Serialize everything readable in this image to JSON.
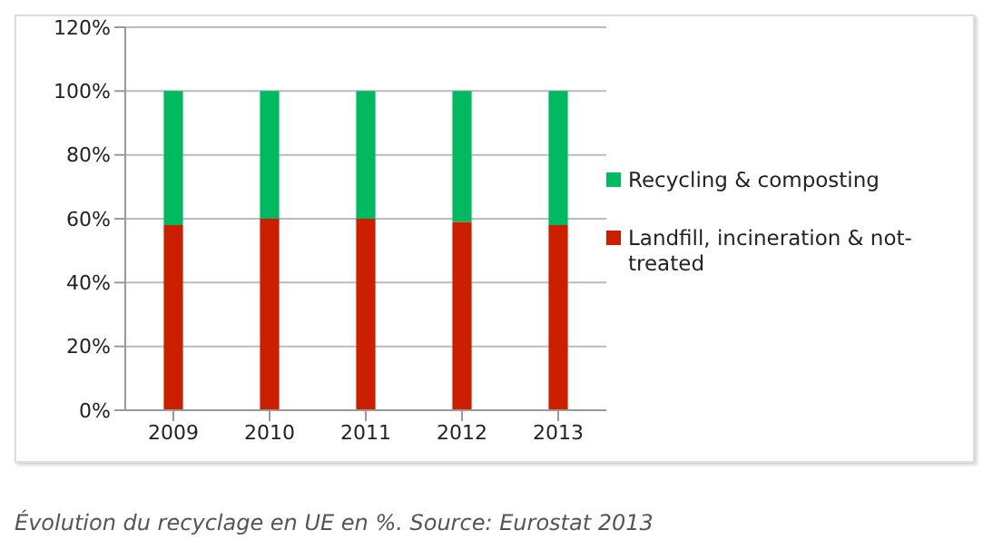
{
  "chart_data": {
    "type": "bar",
    "stacked": true,
    "categories": [
      "2009",
      "2010",
      "2011",
      "2012",
      "2013"
    ],
    "series": [
      {
        "name": "Landfill, incineration & not-treated",
        "color": "#cc1f00",
        "values": [
          58,
          60,
          60,
          59,
          58
        ]
      },
      {
        "name": "Recycling & composting",
        "color": "#00b960",
        "values": [
          42,
          40,
          40,
          41,
          42
        ]
      }
    ],
    "ylim": [
      0,
      120
    ],
    "yticks": [
      {
        "value": 0,
        "label": "0%"
      },
      {
        "value": 20,
        "label": "20%"
      },
      {
        "value": 40,
        "label": "40%"
      },
      {
        "value": 60,
        "label": "60%"
      },
      {
        "value": 80,
        "label": "80%"
      },
      {
        "value": 100,
        "label": "100%"
      },
      {
        "value": 120,
        "label": "120%"
      }
    ],
    "grid": "y",
    "legend": "right",
    "annotations": [
      "Évolution du recyclage en UE en %. Source: Eurostat 2013"
    ]
  }
}
